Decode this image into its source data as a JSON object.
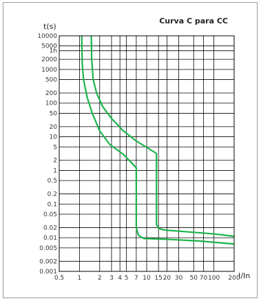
{
  "chart_data": {
    "type": "line",
    "title": "Curva C para CC",
    "ylabel": "t(s)",
    "xlabel": "I/In",
    "x_scale": "log",
    "y_scale": "log",
    "xlim": [
      0.5,
      200
    ],
    "ylim": [
      0.001,
      10000
    ],
    "grid": true,
    "x_ticks": [
      {
        "value": 0.5,
        "label": "0.5"
      },
      {
        "value": 1,
        "label": "1"
      },
      {
        "value": 2,
        "label": "2"
      },
      {
        "value": 3,
        "label": "3"
      },
      {
        "value": 4,
        "label": "4"
      },
      {
        "value": 5,
        "label": "5"
      },
      {
        "value": 7,
        "label": "7"
      },
      {
        "value": 10,
        "label": "10"
      },
      {
        "value": 15,
        "label": "15"
      },
      {
        "value": 20,
        "label": "20"
      },
      {
        "value": 30,
        "label": "30"
      },
      {
        "value": 50,
        "label": "50"
      },
      {
        "value": 70,
        "label": "70"
      },
      {
        "value": 100,
        "label": "100"
      },
      {
        "value": 200,
        "label": "200"
      }
    ],
    "y_ticks": [
      {
        "value": 10000,
        "label": "10000"
      },
      {
        "value": 5000,
        "label": "5000"
      },
      {
        "value": 3600,
        "label": "1h"
      },
      {
        "value": 2000,
        "label": "2000"
      },
      {
        "value": 1000,
        "label": "1000"
      },
      {
        "value": 500,
        "label": "500"
      },
      {
        "value": 200,
        "label": "200"
      },
      {
        "value": 100,
        "label": "100"
      },
      {
        "value": 50,
        "label": "50"
      },
      {
        "value": 20,
        "label": "20"
      },
      {
        "value": 10,
        "label": "10"
      },
      {
        "value": 5,
        "label": "5"
      },
      {
        "value": 2,
        "label": "2"
      },
      {
        "value": 1,
        "label": "1"
      },
      {
        "value": 0.5,
        "label": "0.5"
      },
      {
        "value": 0.2,
        "label": "0.2"
      },
      {
        "value": 0.1,
        "label": "0.1"
      },
      {
        "value": 0.05,
        "label": "0.05"
      },
      {
        "value": 0.02,
        "label": "0.02"
      },
      {
        "value": 0.01,
        "label": "0.01"
      },
      {
        "value": 0.005,
        "label": "0.005"
      },
      {
        "value": 0.002,
        "label": "0.002"
      },
      {
        "value": 0.001,
        "label": "0.001"
      }
    ],
    "series": [
      {
        "color": "#1bb34a",
        "points": [
          [
            1.08,
            10000
          ],
          [
            1.1,
            1500
          ],
          [
            1.15,
            500
          ],
          [
            1.3,
            150
          ],
          [
            1.55,
            50
          ],
          [
            2.0,
            15
          ],
          [
            2.8,
            6
          ],
          [
            4.5,
            3
          ],
          [
            7.0,
            1.2
          ],
          [
            7.0,
            0.02
          ],
          [
            7.5,
            0.012
          ],
          [
            9.0,
            0.0095
          ],
          [
            20,
            0.009
          ],
          [
            60,
            0.008
          ],
          [
            200,
            0.0065
          ]
        ]
      },
      {
        "color": "#1bb34a",
        "points": [
          [
            1.5,
            10000
          ],
          [
            1.52,
            2000
          ],
          [
            1.6,
            500
          ],
          [
            1.8,
            200
          ],
          [
            2.2,
            80
          ],
          [
            3.0,
            35
          ],
          [
            4.5,
            15
          ],
          [
            7.0,
            7.5
          ],
          [
            14,
            3.2
          ],
          [
            14,
            0.025
          ],
          [
            15,
            0.019
          ],
          [
            18,
            0.017
          ],
          [
            40,
            0.015
          ],
          [
            100,
            0.013
          ],
          [
            200,
            0.011
          ]
        ]
      }
    ]
  }
}
